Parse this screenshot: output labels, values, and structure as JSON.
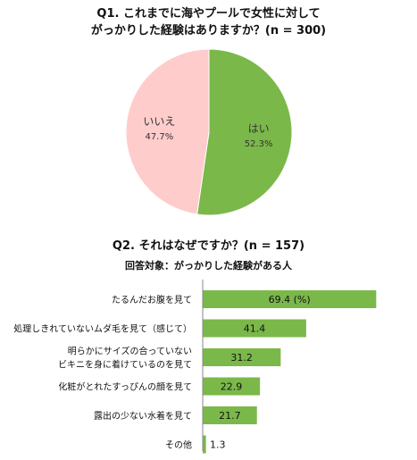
{
  "colors": {
    "yes": "#7bb84a",
    "no": "#ffcccc",
    "bar": "#7bb84a",
    "axis": "#888888"
  },
  "chart_data": [
    {
      "type": "pie",
      "title_line1": "Q1. これまでに海やプールで女性に対して",
      "title_line2": "がっかりした経験はありますか？(n = 300)",
      "slices": [
        {
          "label": "はい",
          "value": 52.3,
          "value_text": "52.3%",
          "color": "#7bb84a"
        },
        {
          "label": "いいえ",
          "value": 47.7,
          "value_text": "47.7%",
          "color": "#ffcccc"
        }
      ]
    },
    {
      "type": "bar",
      "orientation": "horizontal",
      "title": "Q2. それはなぜですか？(n = 157)",
      "subtitle": "回答対象：がっかりした経験がある人",
      "categories": [
        [
          "たるんだお腹を見て"
        ],
        [
          "処理しきれていないムダ毛を見て（感じて）"
        ],
        [
          "明らかにサイズの合っていない",
          "ビキニを身に着けているのを見て"
        ],
        [
          "化粧がとれたすっぴんの顔を見て"
        ],
        [
          "露出の少ない水着を見て"
        ],
        [
          "その他"
        ]
      ],
      "values": [
        69.4,
        41.4,
        31.2,
        22.9,
        21.7,
        1.3
      ],
      "value_labels": [
        "69.4 (%)",
        "41.4",
        "31.2",
        "22.9",
        "21.7",
        "1.3"
      ],
      "xlim": [
        0,
        100
      ]
    }
  ]
}
